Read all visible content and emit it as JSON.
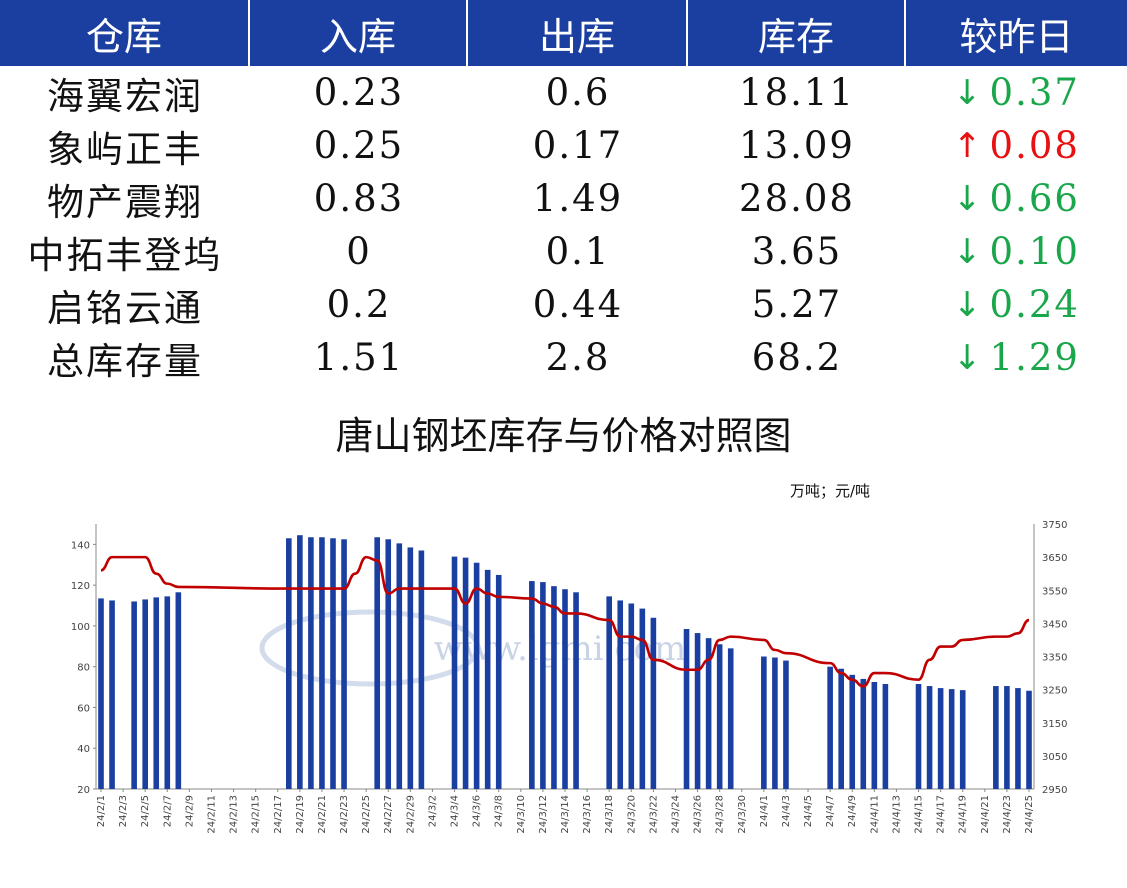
{
  "table": {
    "headers": [
      "仓库",
      "入库",
      "出库",
      "库存",
      "较昨日"
    ],
    "rows": [
      {
        "name": "海翼宏润",
        "in": "0.23",
        "out": "0.6",
        "stock": "18.11",
        "dir": "down",
        "arrow": "↓",
        "change": "0.37"
      },
      {
        "name": "象屿正丰",
        "in": "0.25",
        "out": "0.17",
        "stock": "13.09",
        "dir": "up",
        "arrow": "↑",
        "change": "0.08"
      },
      {
        "name": "物产震翔",
        "in": "0.83",
        "out": "1.49",
        "stock": "28.08",
        "dir": "down",
        "arrow": "↓",
        "change": "0.66"
      },
      {
        "name": "中拓丰登坞",
        "in": "0",
        "out": "0.1",
        "stock": "3.65",
        "dir": "down",
        "arrow": "↓",
        "change": "0.10"
      },
      {
        "name": "启铭云通",
        "in": "0.2",
        "out": "0.44",
        "stock": "5.27",
        "dir": "down",
        "arrow": "↓",
        "change": "0.24"
      },
      {
        "name": "总库存量",
        "in": "1.51",
        "out": "2.8",
        "stock": "68.2",
        "dir": "down",
        "arrow": "↓",
        "change": "1.29"
      }
    ]
  },
  "colors": {
    "header_bg": "#1a3fa0",
    "bar": "#1a3fa0",
    "line": "#c00000",
    "down": "#1aa64a",
    "up": "#e81010"
  },
  "chart_data": {
    "type": "bar",
    "title": "唐山钢坯库存与价格对照图",
    "unit_label": "万吨；元/吨",
    "watermark": "www.lgmi.com",
    "ylim": [
      20,
      150
    ],
    "yticks": [
      20,
      40,
      60,
      80,
      100,
      120,
      140
    ],
    "y2lim": [
      2950,
      3750
    ],
    "y2ticks": [
      2950,
      3050,
      3150,
      3250,
      3350,
      3450,
      3550,
      3650,
      3750
    ],
    "start_date": "2024-02-01",
    "end_date": "2024-04-25",
    "xtick_labels": [
      "24/2/1",
      "24/2/3",
      "24/2/5",
      "24/2/7",
      "24/2/9",
      "24/2/11",
      "24/2/13",
      "24/2/15",
      "24/2/17",
      "24/2/19",
      "24/2/21",
      "24/2/23",
      "24/2/25",
      "24/2/27",
      "24/2/29",
      "24/3/2",
      "24/3/4",
      "24/3/6",
      "24/3/8",
      "24/3/10",
      "24/3/12",
      "24/3/14",
      "24/3/16",
      "24/3/18",
      "24/3/20",
      "24/3/22",
      "24/3/24",
      "24/3/26",
      "24/3/28",
      "24/3/30",
      "24/4/1",
      "24/4/3",
      "24/4/5",
      "24/4/7",
      "24/4/9",
      "24/4/11",
      "24/4/13",
      "24/4/15",
      "24/4/17",
      "24/4/19",
      "24/4/21",
      "24/4/23",
      "24/4/25"
    ],
    "series": [
      {
        "kind": "bar",
        "axis": "left",
        "points": [
          [
            "24/2/1",
            113.5
          ],
          [
            "24/2/2",
            112.5
          ],
          [
            "24/2/4",
            112
          ],
          [
            "24/2/5",
            113
          ],
          [
            "24/2/6",
            114
          ],
          [
            "24/2/7",
            114.5
          ],
          [
            "24/2/8",
            116.5
          ],
          [
            "24/2/18",
            143
          ],
          [
            "24/2/19",
            144.5
          ],
          [
            "24/2/20",
            143.5
          ],
          [
            "24/2/21",
            143.5
          ],
          [
            "24/2/22",
            143
          ],
          [
            "24/2/23",
            142.5
          ],
          [
            "24/2/26",
            143.5
          ],
          [
            "24/2/27",
            142.5
          ],
          [
            "24/2/28",
            140.5
          ],
          [
            "24/2/29",
            138.5
          ],
          [
            "24/3/1",
            137
          ],
          [
            "24/3/4",
            134
          ],
          [
            "24/3/5",
            133.5
          ],
          [
            "24/3/6",
            131
          ],
          [
            "24/3/7",
            127.5
          ],
          [
            "24/3/8",
            125
          ],
          [
            "24/3/11",
            122
          ],
          [
            "24/3/12",
            121.5
          ],
          [
            "24/3/13",
            119.5
          ],
          [
            "24/3/14",
            118
          ],
          [
            "24/3/15",
            116.5
          ],
          [
            "24/3/18",
            114.5
          ],
          [
            "24/3/19",
            112.5
          ],
          [
            "24/3/20",
            111
          ],
          [
            "24/3/21",
            108.5
          ],
          [
            "24/3/22",
            104
          ],
          [
            "24/3/25",
            98.5
          ],
          [
            "24/3/26",
            96.5
          ],
          [
            "24/3/27",
            94
          ],
          [
            "24/3/28",
            91
          ],
          [
            "24/3/29",
            89
          ],
          [
            "24/4/1",
            85
          ],
          [
            "24/4/2",
            84.5
          ],
          [
            "24/4/3",
            83
          ],
          [
            "24/4/7",
            80
          ],
          [
            "24/4/8",
            79
          ],
          [
            "24/4/9",
            76
          ],
          [
            "24/4/10",
            74
          ],
          [
            "24/4/11",
            72.5
          ],
          [
            "24/4/12",
            71.5
          ],
          [
            "24/4/15",
            71.5
          ],
          [
            "24/4/16",
            70.5
          ],
          [
            "24/4/17",
            69.5
          ],
          [
            "24/4/18",
            69
          ],
          [
            "24/4/19",
            68.5
          ],
          [
            "24/4/22",
            70.5
          ],
          [
            "24/4/23",
            70.5
          ],
          [
            "24/4/24",
            69.5
          ],
          [
            "24/4/25",
            68.2
          ]
        ]
      },
      {
        "kind": "line",
        "axis": "right",
        "points": [
          [
            "24/2/1",
            3610
          ],
          [
            "24/2/2",
            3650
          ],
          [
            "24/2/4",
            3650
          ],
          [
            "24/2/5",
            3650
          ],
          [
            "24/2/6",
            3600
          ],
          [
            "24/2/7",
            3570
          ],
          [
            "24/2/8",
            3560
          ],
          [
            "24/2/18",
            3555
          ],
          [
            "24/2/23",
            3555
          ],
          [
            "24/2/24",
            3600
          ],
          [
            "24/2/25",
            3650
          ],
          [
            "24/2/26",
            3640
          ],
          [
            "24/2/27",
            3540
          ],
          [
            "24/2/28",
            3555
          ],
          [
            "24/3/1",
            3555
          ],
          [
            "24/3/4",
            3555
          ],
          [
            "24/3/5",
            3510
          ],
          [
            "24/3/6",
            3555
          ],
          [
            "24/3/7",
            3540
          ],
          [
            "24/3/8",
            3530
          ],
          [
            "24/3/11",
            3525
          ],
          [
            "24/3/12",
            3510
          ],
          [
            "24/3/13",
            3500
          ],
          [
            "24/3/14",
            3480
          ],
          [
            "24/3/15",
            3480
          ],
          [
            "24/3/18",
            3460
          ],
          [
            "24/3/19",
            3410
          ],
          [
            "24/3/20",
            3410
          ],
          [
            "24/3/21",
            3400
          ],
          [
            "24/3/22",
            3340
          ],
          [
            "24/3/25",
            3310
          ],
          [
            "24/3/26",
            3310
          ],
          [
            "24/3/27",
            3340
          ],
          [
            "24/3/28",
            3400
          ],
          [
            "24/3/29",
            3410
          ],
          [
            "24/4/1",
            3400
          ],
          [
            "24/4/2",
            3370
          ],
          [
            "24/4/3",
            3360
          ],
          [
            "24/4/7",
            3330
          ],
          [
            "24/4/8",
            3300
          ],
          [
            "24/4/9",
            3280
          ],
          [
            "24/4/10",
            3260
          ],
          [
            "24/4/11",
            3300
          ],
          [
            "24/4/12",
            3300
          ],
          [
            "24/4/15",
            3280
          ],
          [
            "24/4/16",
            3340
          ],
          [
            "24/4/17",
            3380
          ],
          [
            "24/4/18",
            3380
          ],
          [
            "24/4/19",
            3400
          ],
          [
            "24/4/22",
            3410
          ],
          [
            "24/4/23",
            3410
          ],
          [
            "24/4/24",
            3420
          ],
          [
            "24/4/25",
            3460
          ]
        ]
      }
    ]
  }
}
